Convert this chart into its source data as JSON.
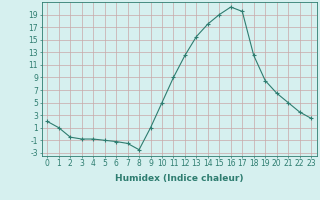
{
  "x": [
    0,
    1,
    2,
    3,
    4,
    5,
    6,
    7,
    8,
    9,
    10,
    11,
    12,
    13,
    14,
    15,
    16,
    17,
    18,
    19,
    20,
    21,
    22,
    23
  ],
  "y": [
    2,
    1,
    -0.5,
    -0.8,
    -0.8,
    -1.0,
    -1.2,
    -1.5,
    -2.5,
    1.0,
    5.0,
    9.0,
    12.5,
    15.5,
    17.5,
    19.0,
    20.2,
    19.5,
    12.5,
    8.5,
    6.5,
    5.0,
    3.5,
    2.5
  ],
  "line_color": "#2e7d70",
  "marker": "+",
  "marker_size": 3,
  "bg_color": "#d6f0ef",
  "grid_color_major": "#c8a8a8",
  "grid_color_minor": "#dfc8c8",
  "xlabel": "Humidex (Indice chaleur)",
  "ylim": [
    -3.5,
    21
  ],
  "yticks": [
    -3,
    -1,
    1,
    3,
    5,
    7,
    9,
    11,
    13,
    15,
    17,
    19
  ],
  "xlim": [
    -0.5,
    23.5
  ],
  "xticks": [
    0,
    1,
    2,
    3,
    4,
    5,
    6,
    7,
    8,
    9,
    10,
    11,
    12,
    13,
    14,
    15,
    16,
    17,
    18,
    19,
    20,
    21,
    22,
    23
  ],
  "xtick_labels": [
    "0",
    "1",
    "2",
    "3",
    "4",
    "5",
    "6",
    "7",
    "8",
    "9",
    "10",
    "11",
    "12",
    "13",
    "14",
    "15",
    "16",
    "17",
    "18",
    "19",
    "20",
    "21",
    "22",
    "23"
  ],
  "axis_fontsize": 5.5,
  "label_fontsize": 6.5
}
